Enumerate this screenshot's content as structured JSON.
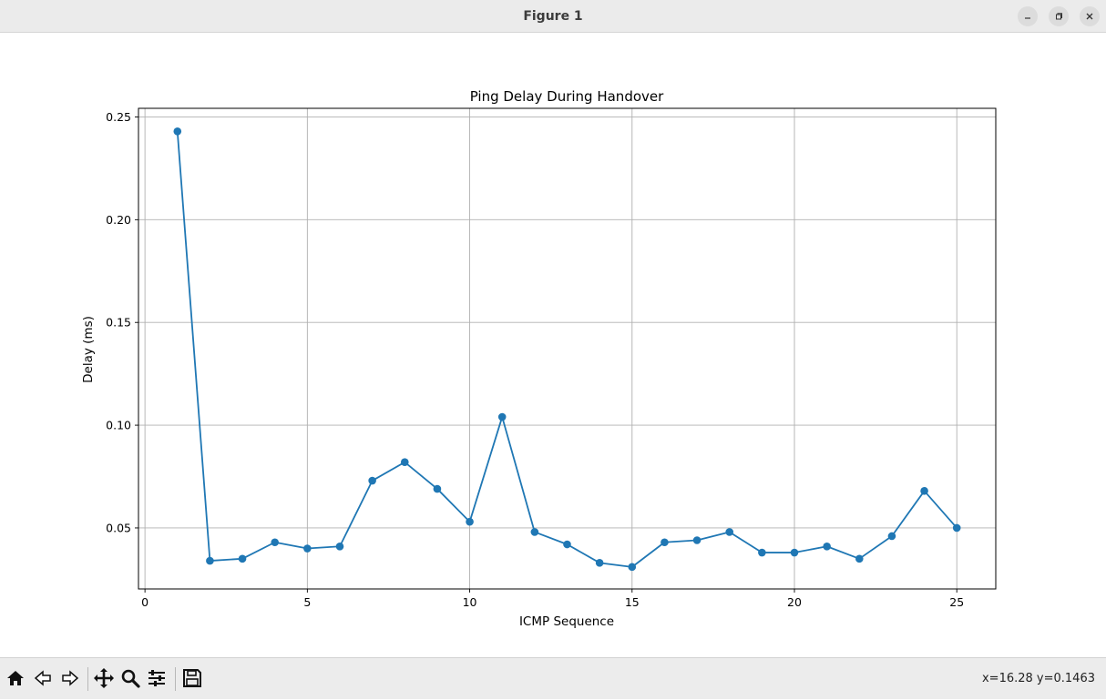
{
  "window": {
    "title": "Figure 1",
    "buttons": [
      "minimize-icon",
      "maximize-icon",
      "close-icon"
    ]
  },
  "toolbar": {
    "icons": [
      "home-icon",
      "back-icon",
      "forward-icon",
      "pan-icon",
      "zoom-icon",
      "configure-subplots-icon",
      "save-icon"
    ],
    "coords": "x=16.28 y=0.1463"
  },
  "chart_data": {
    "type": "line",
    "title": "Ping Delay During Handover",
    "xlabel": "ICMP Sequence",
    "ylabel": "Delay (ms)",
    "x": [
      1,
      2,
      3,
      4,
      5,
      6,
      7,
      8,
      9,
      10,
      11,
      12,
      13,
      14,
      15,
      16,
      17,
      18,
      19,
      20,
      21,
      22,
      23,
      24,
      25
    ],
    "series": [
      {
        "values": [
          0.243,
          0.034,
          0.035,
          0.043,
          0.04,
          0.041,
          0.073,
          0.082,
          0.069,
          0.053,
          0.104,
          0.048,
          0.042,
          0.033,
          0.031,
          0.043,
          0.044,
          0.048,
          0.038,
          0.038,
          0.041,
          0.035,
          0.046,
          0.068,
          0.05
        ],
        "color": "#1f77b4",
        "marker": "circle"
      }
    ],
    "xlim": [
      -0.2,
      26.2
    ],
    "ylim": [
      0.0203,
      0.2542
    ],
    "xticks": [
      0,
      5,
      10,
      15,
      20,
      25
    ],
    "xtick_labels": [
      "0",
      "5",
      "10",
      "15",
      "20",
      "25"
    ],
    "yticks": [
      0.05,
      0.1,
      0.15,
      0.2,
      0.25
    ],
    "ytick_labels": [
      "0.05",
      "0.10",
      "0.15",
      "0.20",
      "0.25"
    ],
    "grid": true
  }
}
